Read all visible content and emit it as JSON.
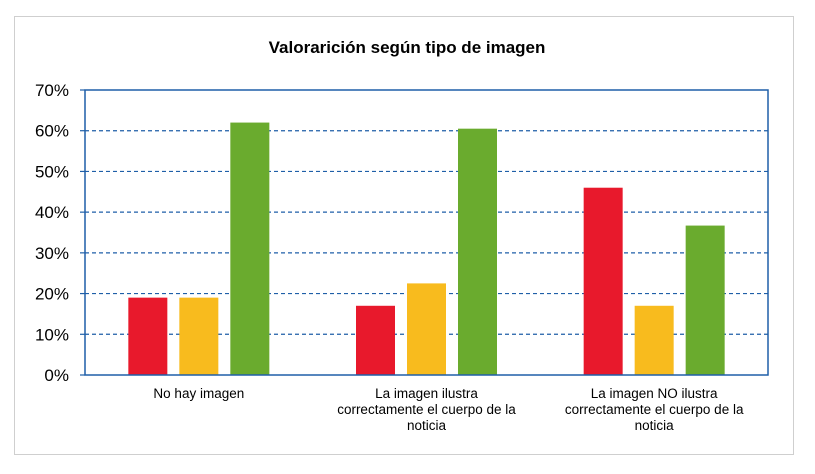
{
  "chart_data": {
    "type": "bar",
    "title": "Valorarición según tipo de imagen",
    "xlabel": "",
    "ylabel": "",
    "ylim": [
      0,
      70
    ],
    "yticks": [
      0,
      10,
      20,
      30,
      40,
      50,
      60,
      70
    ],
    "ytick_labels": [
      "0%",
      "10%",
      "20%",
      "30%",
      "40%",
      "50%",
      "60%",
      "70%"
    ],
    "grid": true,
    "legend": "none",
    "categories": [
      [
        "No hay imagen"
      ],
      [
        "La imagen ilustra",
        "correctamente el cuerpo de la",
        "noticia"
      ],
      [
        "La imagen NO ilustra",
        "correctamente el cuerpo de la",
        "noticia"
      ]
    ],
    "series": [
      {
        "color": "#e8192c",
        "values": [
          19,
          17,
          46
        ]
      },
      {
        "color": "#f8bb1e",
        "values": [
          19,
          22.5,
          17
        ]
      },
      {
        "color": "#6aab2e",
        "values": [
          62,
          60.5,
          36.7
        ]
      }
    ],
    "colors": {
      "axis": "#1f5fa8",
      "grid": "#1f5fa8"
    }
  }
}
